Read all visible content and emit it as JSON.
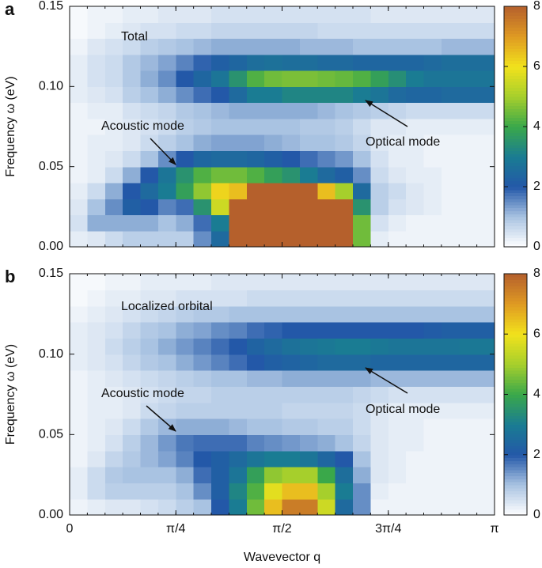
{
  "chart_data": [
    {
      "type": "heatmap",
      "panel_label": "a",
      "ylabel": "Frequency ω (eV)",
      "xlim": [
        0,
        3.1416
      ],
      "ylim": [
        0,
        0.15
      ],
      "xticks": [
        0,
        0.7854,
        1.5708,
        2.3562,
        3.1416
      ],
      "yticks": [
        {
          "value": 0,
          "label": "0.00"
        },
        {
          "value": 0.05,
          "label": "0.05"
        },
        {
          "value": 0.1,
          "label": "0.10"
        },
        {
          "value": 0.15,
          "label": "0.15"
        }
      ],
      "zlim": [
        0,
        8
      ],
      "colorbar_ticks": [
        0,
        2,
        4,
        6,
        8
      ],
      "colormap": [
        "#ffffff",
        "#a9c3e2",
        "#2358a8",
        "#1a7c93",
        "#3aa84a",
        "#a6cf2c",
        "#f2e21c",
        "#df9a22",
        "#b5602c"
      ],
      "annotations": [
        {
          "text": "Total"
        },
        {
          "text": "Acoustic mode"
        },
        {
          "text": "Optical mode"
        }
      ],
      "z": [
        [
          0.3,
          0.4,
          0.6,
          0.8,
          0.8,
          0.8,
          0.8,
          1.5,
          2.5,
          8,
          8,
          8,
          8,
          8,
          8,
          8,
          4.5,
          0.3,
          0.2,
          0.2,
          0.2,
          0.2,
          0.2,
          0.2
        ],
        [
          0.5,
          1.2,
          1.2,
          1.2,
          1.2,
          1.0,
          1.2,
          1.8,
          3,
          8,
          8,
          8,
          8,
          8,
          8,
          8,
          4.5,
          0.5,
          0.3,
          0.2,
          0.2,
          0.2,
          0.2,
          0.2
        ],
        [
          0.4,
          1.0,
          1.5,
          2.2,
          2.0,
          1.6,
          1.8,
          3.5,
          5.5,
          8,
          8,
          8,
          8,
          8,
          8,
          8,
          3.5,
          0.8,
          0.5,
          0.4,
          0.3,
          0.2,
          0.2,
          0.2
        ],
        [
          0.3,
          0.6,
          1.2,
          2.0,
          2.5,
          3.0,
          3.8,
          4.8,
          6.2,
          6.5,
          8,
          8,
          8,
          8,
          6.5,
          5,
          2.5,
          0.8,
          0.6,
          0.4,
          0.3,
          0.2,
          0.2,
          0.2
        ],
        [
          0.2,
          0.3,
          0.6,
          1.2,
          2.0,
          2.8,
          3.5,
          4.2,
          4.5,
          4.5,
          4.2,
          3.8,
          3.5,
          3.0,
          2.5,
          2.2,
          1.5,
          0.6,
          0.4,
          0.3,
          0.3,
          0.2,
          0.2,
          0.2
        ],
        [
          0.2,
          0.3,
          0.4,
          0.6,
          1.0,
          1.5,
          2.0,
          2.4,
          2.5,
          2.5,
          2.4,
          2.2,
          2.0,
          1.8,
          1.6,
          1.4,
          1.0,
          0.5,
          0.3,
          0.3,
          0.2,
          0.2,
          0.2,
          0.2
        ],
        [
          0.2,
          0.3,
          0.3,
          0.4,
          0.6,
          0.8,
          1.0,
          1.2,
          1.3,
          1.3,
          1.3,
          1.2,
          1.1,
          1.0,
          1.0,
          0.9,
          0.7,
          0.4,
          0.3,
          0.3,
          0.2,
          0.2,
          0.2,
          0.2
        ],
        [
          0.2,
          0.2,
          0.3,
          0.4,
          0.5,
          0.6,
          0.8,
          0.9,
          1.0,
          1.0,
          1.0,
          1.0,
          1.0,
          0.9,
          0.9,
          0.8,
          0.6,
          0.4,
          0.4,
          0.3,
          0.3,
          0.3,
          0.3,
          0.3
        ],
        [
          0.2,
          0.3,
          0.3,
          0.5,
          0.6,
          0.7,
          0.9,
          1.0,
          1.1,
          1.2,
          1.2,
          1.2,
          1.2,
          1.2,
          1.1,
          1.0,
          0.9,
          0.8,
          0.7,
          0.6,
          0.6,
          0.6,
          0.6,
          0.6
        ],
        [
          0.3,
          0.4,
          0.5,
          0.8,
          1.0,
          1.2,
          1.5,
          1.8,
          2.0,
          2.5,
          3.0,
          3.0,
          3.2,
          3.2,
          3.2,
          3.2,
          3.0,
          2.8,
          2.5,
          2.4,
          2.4,
          2.5,
          2.5,
          2.5
        ],
        [
          0.3,
          0.5,
          0.6,
          0.9,
          1.2,
          1.5,
          2.0,
          2.4,
          2.8,
          3.5,
          4.2,
          4.5,
          4.6,
          4.6,
          4.5,
          4.4,
          4.2,
          3.8,
          3.4,
          3.0,
          2.8,
          2.8,
          2.8,
          2.8
        ],
        [
          0.3,
          0.5,
          0.6,
          0.9,
          1.1,
          1.3,
          1.6,
          1.9,
          2.2,
          2.4,
          2.6,
          2.7,
          2.6,
          2.6,
          2.5,
          2.5,
          2.4,
          2.4,
          2.4,
          2.4,
          2.5,
          2.6,
          2.6,
          2.6
        ],
        [
          0.2,
          0.4,
          0.5,
          0.6,
          0.8,
          0.9,
          1.0,
          1.1,
          1.2,
          1.2,
          1.2,
          1.2,
          1.2,
          1.1,
          1.1,
          1.1,
          1.0,
          1.0,
          1.0,
          1.0,
          1.0,
          1.1,
          1.1,
          1.1
        ],
        [
          0.1,
          0.2,
          0.3,
          0.4,
          0.5,
          0.5,
          0.6,
          0.6,
          0.7,
          0.7,
          0.7,
          0.7,
          0.7,
          0.7,
          0.6,
          0.6,
          0.6,
          0.6,
          0.6,
          0.6,
          0.6,
          0.6,
          0.6,
          0.6
        ],
        [
          0.1,
          0.2,
          0.2,
          0.3,
          0.3,
          0.4,
          0.4,
          0.4,
          0.5,
          0.5,
          0.5,
          0.5,
          0.5,
          0.5,
          0.5,
          0.5,
          0.5,
          0.4,
          0.4,
          0.4,
          0.4,
          0.4,
          0.4,
          0.4
        ]
      ]
    },
    {
      "type": "heatmap",
      "panel_label": "b",
      "ylabel": "Frequency ω (eV)",
      "xlabel": "Wavevector q",
      "xlim": [
        0,
        3.1416
      ],
      "ylim": [
        0,
        0.15
      ],
      "xticks": [
        {
          "value": 0,
          "label": "0"
        },
        {
          "value": 0.7854,
          "label": "π/4"
        },
        {
          "value": 1.5708,
          "label": "π/2"
        },
        {
          "value": 2.3562,
          "label": "3π/4"
        },
        {
          "value": 3.1416,
          "label": "π"
        }
      ],
      "yticks": [
        {
          "value": 0,
          "label": "0.00"
        },
        {
          "value": 0.05,
          "label": "0.05"
        },
        {
          "value": 0.1,
          "label": "0.10"
        },
        {
          "value": 0.15,
          "label": "0.15"
        }
      ],
      "zlim": [
        0,
        8
      ],
      "colorbar_ticks": [
        0,
        2,
        4,
        6,
        8
      ],
      "colormap": [
        "#ffffff",
        "#a9c3e2",
        "#2358a8",
        "#1a7c93",
        "#3aa84a",
        "#a6cf2c",
        "#f2e21c",
        "#df9a22",
        "#b5602c"
      ],
      "annotations": [
        {
          "text": "Localized orbital"
        },
        {
          "text": "Acoustic mode"
        },
        {
          "text": "Optical mode"
        }
      ],
      "z": [
        [
          0.2,
          0.3,
          0.4,
          0.4,
          0.5,
          0.6,
          0.8,
          1.0,
          2.0,
          3.0,
          4.5,
          6.5,
          7.5,
          7.5,
          5.5,
          2.5,
          1.5,
          0.2,
          0.2,
          0.2,
          0.2,
          0.2,
          0.2,
          0.2
        ],
        [
          0.3,
          0.6,
          0.8,
          0.8,
          0.8,
          0.8,
          1.0,
          1.5,
          2.2,
          3.2,
          4.2,
          5.8,
          6.5,
          6.5,
          5.0,
          3.0,
          1.5,
          0.3,
          0.2,
          0.2,
          0.2,
          0.2,
          0.2,
          0.2
        ],
        [
          0.3,
          0.6,
          0.9,
          1.0,
          1.0,
          1.0,
          1.2,
          1.8,
          2.2,
          2.8,
          3.8,
          4.8,
          5.0,
          5.0,
          4.0,
          2.6,
          1.2,
          0.4,
          0.3,
          0.2,
          0.2,
          0.2,
          0.2,
          0.2
        ],
        [
          0.2,
          0.4,
          0.7,
          0.9,
          1.1,
          1.3,
          1.6,
          2.0,
          2.2,
          2.5,
          2.8,
          3.0,
          3.0,
          2.8,
          2.4,
          2.0,
          1.0,
          0.4,
          0.3,
          0.2,
          0.2,
          0.2,
          0.2,
          0.2
        ],
        [
          0.2,
          0.3,
          0.5,
          0.8,
          1.1,
          1.4,
          1.7,
          1.8,
          1.8,
          1.8,
          1.6,
          1.5,
          1.4,
          1.3,
          1.2,
          1.0,
          0.7,
          0.4,
          0.3,
          0.3,
          0.2,
          0.2,
          0.2,
          0.2
        ],
        [
          0.2,
          0.3,
          0.4,
          0.6,
          0.9,
          1.1,
          1.2,
          1.2,
          1.2,
          1.1,
          1.0,
          1.0,
          0.9,
          0.9,
          0.8,
          0.8,
          0.6,
          0.4,
          0.3,
          0.3,
          0.2,
          0.2,
          0.2,
          0.2
        ],
        [
          0.2,
          0.3,
          0.3,
          0.4,
          0.6,
          0.7,
          0.8,
          0.8,
          0.8,
          0.8,
          0.8,
          0.8,
          0.7,
          0.7,
          0.7,
          0.7,
          0.6,
          0.4,
          0.3,
          0.3,
          0.3,
          0.3,
          0.3,
          0.3
        ],
        [
          0.2,
          0.3,
          0.3,
          0.4,
          0.5,
          0.6,
          0.7,
          0.7,
          0.8,
          0.8,
          0.8,
          0.8,
          0.8,
          0.8,
          0.8,
          0.8,
          0.7,
          0.6,
          0.5,
          0.5,
          0.5,
          0.5,
          0.5,
          0.5
        ],
        [
          0.2,
          0.3,
          0.4,
          0.5,
          0.6,
          0.7,
          0.8,
          0.9,
          1.0,
          1.0,
          1.1,
          1.1,
          1.2,
          1.2,
          1.2,
          1.2,
          1.2,
          1.1,
          1.1,
          1.1,
          1.1,
          1.1,
          1.1,
          1.1
        ],
        [
          0.3,
          0.4,
          0.5,
          0.7,
          0.9,
          1.0,
          1.2,
          1.4,
          1.6,
          1.8,
          2.0,
          2.2,
          2.3,
          2.4,
          2.5,
          2.5,
          2.5,
          2.4,
          2.4,
          2.4,
          2.4,
          2.4,
          2.4,
          2.4
        ],
        [
          0.3,
          0.4,
          0.6,
          0.8,
          1.0,
          1.2,
          1.4,
          1.6,
          1.8,
          2.0,
          2.3,
          2.5,
          2.7,
          2.8,
          2.9,
          3.0,
          3.0,
          2.9,
          2.8,
          2.8,
          2.8,
          2.8,
          2.9,
          2.9
        ],
        [
          0.3,
          0.4,
          0.5,
          0.7,
          0.9,
          1.0,
          1.2,
          1.3,
          1.5,
          1.6,
          1.8,
          1.9,
          2.0,
          2.0,
          2.0,
          2.0,
          2.0,
          2.0,
          2.0,
          2.0,
          2.1,
          2.2,
          2.2,
          2.2
        ],
        [
          0.2,
          0.3,
          0.4,
          0.5,
          0.6,
          0.7,
          0.8,
          0.9,
          0.9,
          1.0,
          1.0,
          1.0,
          1.0,
          1.0,
          1.0,
          1.0,
          1.0,
          1.0,
          1.0,
          1.0,
          1.0,
          1.0,
          1.0,
          1.0
        ],
        [
          0.1,
          0.2,
          0.3,
          0.3,
          0.4,
          0.4,
          0.5,
          0.5,
          0.5,
          0.5,
          0.6,
          0.6,
          0.6,
          0.6,
          0.6,
          0.6,
          0.6,
          0.6,
          0.6,
          0.6,
          0.6,
          0.6,
          0.6,
          0.6
        ],
        [
          0.1,
          0.1,
          0.2,
          0.2,
          0.3,
          0.3,
          0.3,
          0.3,
          0.4,
          0.4,
          0.4,
          0.4,
          0.4,
          0.4,
          0.4,
          0.4,
          0.4,
          0.4,
          0.4,
          0.4,
          0.4,
          0.4,
          0.4,
          0.4
        ]
      ]
    }
  ]
}
